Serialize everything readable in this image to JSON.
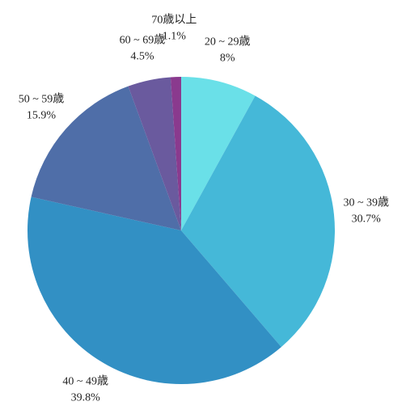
{
  "chart_data": {
    "type": "pie",
    "categories": [
      "20 ~ 29歳",
      "30 ~ 39歳",
      "40 ~ 49歳",
      "50 ~ 59歳",
      "60 ~ 69歳",
      "70歳以上"
    ],
    "values": [
      8,
      30.7,
      39.8,
      15.9,
      4.5,
      1.1
    ],
    "value_labels": [
      "8%",
      "30.7%",
      "39.8%",
      "15.9%",
      "4.5%",
      "1.1%"
    ],
    "colors": [
      "#6ae0e8",
      "#45b8d8",
      "#3290c4",
      "#4f6ea8",
      "#6a5a9e",
      "#8a3a8e"
    ]
  }
}
